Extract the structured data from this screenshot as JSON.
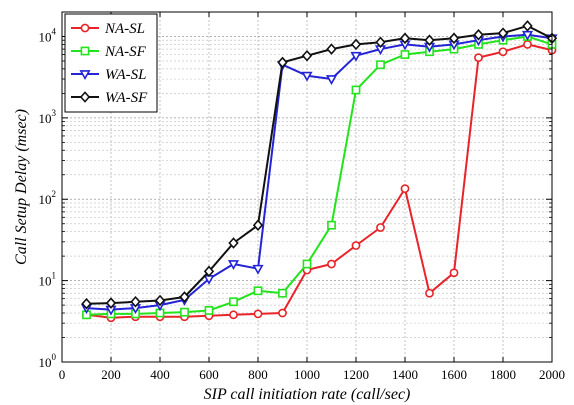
{
  "chart_data": {
    "type": "line",
    "xlabel": "SIP call initiation rate (call/sec)",
    "ylabel": "Call Setup Delay (msec)",
    "x": [
      100,
      200,
      300,
      400,
      500,
      600,
      700,
      800,
      900,
      1000,
      1100,
      1200,
      1300,
      1400,
      1500,
      1600,
      1700,
      1800,
      1900,
      2000
    ],
    "xlim": [
      0,
      2000
    ],
    "ylim": [
      1,
      20000
    ],
    "yscale": "log",
    "grid": true,
    "legend_position": "top-left",
    "xticks": [
      "0",
      "200",
      "400",
      "600",
      "800",
      "1000",
      "1200",
      "1400",
      "1600",
      "1800",
      "2000"
    ],
    "yticks": [
      {
        "base": "10",
        "exp": "0"
      },
      {
        "base": "10",
        "exp": "1"
      },
      {
        "base": "10",
        "exp": "2"
      },
      {
        "base": "10",
        "exp": "3"
      },
      {
        "base": "10",
        "exp": "4"
      }
    ],
    "series": [
      {
        "name": "NA-SL",
        "color": "#e8232a",
        "marker": "circle",
        "values": [
          3.8,
          3.5,
          3.6,
          3.6,
          3.6,
          3.7,
          3.8,
          3.9,
          4.0,
          13.5,
          16,
          27,
          45,
          135,
          7,
          12.5,
          5500,
          6500,
          8000,
          6800
        ]
      },
      {
        "name": "NA-SF",
        "color": "#22e31c",
        "marker": "square",
        "values": [
          3.8,
          3.9,
          3.9,
          4.0,
          4.1,
          4.3,
          5.5,
          7.5,
          7.0,
          16,
          48,
          2200,
          4500,
          6000,
          6500,
          7000,
          8000,
          9000,
          10000,
          8000
        ]
      },
      {
        "name": "WA-SL",
        "color": "#2424d6",
        "marker": "triangle-down",
        "values": [
          4.6,
          4.4,
          4.6,
          5.0,
          5.8,
          10.5,
          16,
          14,
          4500,
          3300,
          3000,
          5800,
          7000,
          8000,
          7500,
          8000,
          9000,
          10000,
          10500,
          9500
        ]
      },
      {
        "name": "WA-SF",
        "color": "#111111",
        "marker": "diamond",
        "values": [
          5.2,
          5.3,
          5.5,
          5.7,
          6.3,
          13,
          29,
          48,
          4800,
          5800,
          7000,
          8000,
          8500,
          9500,
          9000,
          9500,
          10500,
          11000,
          13500,
          9500
        ]
      }
    ]
  }
}
